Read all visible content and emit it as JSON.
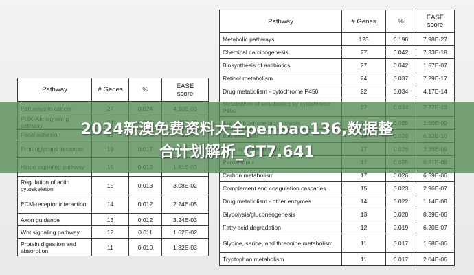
{
  "banner": {
    "line1": "2024新澳免费资料大全penbao136,数据整",
    "line2": "合计划解析_GT7.641"
  },
  "left_table": {
    "headers": [
      "Pathway",
      "# Genes",
      "%",
      "EASE\nscore"
    ],
    "rows": [
      [
        "Pathways in cancer",
        "27",
        "0.024",
        "4.10E-03"
      ],
      [
        "PI3K-Akt signaling pathway",
        "24",
        "0.021",
        "2.33E-02"
      ],
      [
        "Focal adhesion",
        "20",
        "0.018",
        "7.23E-04"
      ],
      [
        "Proteoglycans in cancer",
        "19",
        "0.017",
        "2.44E-03"
      ],
      [
        "Hippo signaling pathway",
        "15",
        "0.013",
        "1.81E-03"
      ],
      [
        "Regulation of actin cytoskeleton",
        "15",
        "0.013",
        "3.08E-02"
      ],
      [
        "ECM-receptor interaction",
        "14",
        "0.012",
        "2.24E-05"
      ],
      [
        "Axon guidance",
        "13",
        "0.012",
        "3.24E-03"
      ],
      [
        "Wnt signaling pathway",
        "12",
        "0.011",
        "1.62E-02"
      ],
      [
        "Protein digestion and absorption",
        "11",
        "0.010",
        "1.82E-03"
      ]
    ]
  },
  "right_table": {
    "headers": [
      "Pathway",
      "# Genes",
      "%",
      "EASE\nscore"
    ],
    "rows": [
      [
        "Metabolic pathways",
        "123",
        "0.190",
        "7.98E-27"
      ],
      [
        "Chemical carcinogenesis",
        "27",
        "0.042",
        "7.33E-18"
      ],
      [
        "Biosynthesis of antibiotics",
        "27",
        "0.042",
        "1.57E-07"
      ],
      [
        "Retinol metabolism",
        "24",
        "0.037",
        "7.29E-17"
      ],
      [
        "Drug metabolism - cytochrome P450",
        "22",
        "0.034",
        "4.17E-14"
      ],
      [
        "Metabolism of xenobiotics by cytochrome P450",
        "22",
        "0.034",
        "2.72E-13"
      ],
      [
        "Steroid hormone biosynthesis",
        "19",
        "0.029",
        "1.50E-09"
      ],
      [
        "Bile secretion",
        "18",
        "0.028",
        "6.32E-10"
      ],
      [
        "Fatty acid metabolism",
        "17",
        "0.026",
        "3.36E-09"
      ],
      [
        "Peroxisome",
        "17",
        "0.026",
        "8.81E-08"
      ],
      [
        "Carbon metabolism",
        "17",
        "0.026",
        "6.59E-06"
      ],
      [
        "Complement and coagulation cascades",
        "15",
        "0.023",
        "2.96E-07"
      ],
      [
        "Drug metabolism - other enzymes",
        "14",
        "0.022",
        "1.14E-08"
      ],
      [
        "Glycolysis/gluconeogenesis",
        "13",
        "0.020",
        "8.39E-06"
      ],
      [
        "Fatty acid degradation",
        "12",
        "0.019",
        "6.20E-07"
      ],
      [
        "Glycine, serine, and threonine metabolism",
        "11",
        "0.017",
        "1.58E-06"
      ],
      [
        "Tryptophan metabolism",
        "11",
        "0.017",
        "2.04E-06"
      ]
    ]
  }
}
